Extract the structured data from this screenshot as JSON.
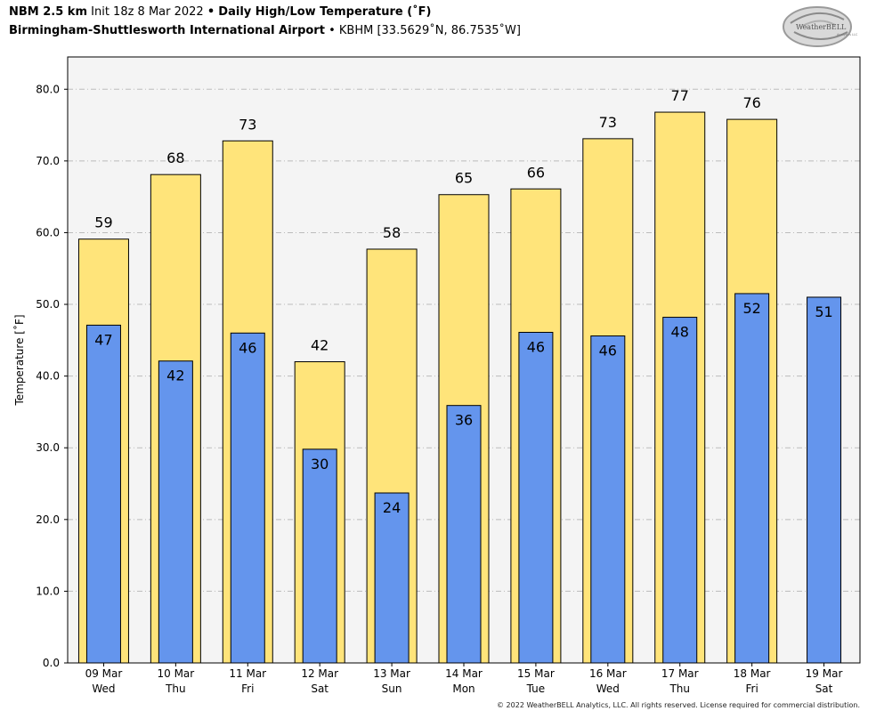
{
  "header": {
    "model": "NBM 2.5 km",
    "init": "Init 18z 8 Mar 2022",
    "bullet": "•",
    "product": "Daily High/Low Temperature (˚F)",
    "station_name": "Birmingham-Shuttlesworth International Airport",
    "station_info": "KBHM [33.5629˚N, 86.7535˚W]"
  },
  "logo": {
    "text": "WeatherBELL",
    "subtext": "Analytics LLC"
  },
  "copyright": "© 2022 WeatherBELL Analytics, LLC. All rights reserved. License required for commercial distribution.",
  "colors": {
    "high": "#FFE47A",
    "low": "#6495ED",
    "plot_bg": "#F4F4F4",
    "grid": "#BBBBBB"
  },
  "chart_data": {
    "type": "bar",
    "ylabel": "Temperature [˚F]",
    "ylim": [
      0,
      84.5
    ],
    "yticks": [
      "0.0",
      "10.0",
      "20.0",
      "30.0",
      "40.0",
      "50.0",
      "60.0",
      "70.0",
      "80.0"
    ],
    "grid": true,
    "categories": [
      {
        "date": "09 Mar",
        "day": "Wed"
      },
      {
        "date": "10 Mar",
        "day": "Thu"
      },
      {
        "date": "11 Mar",
        "day": "Fri"
      },
      {
        "date": "12 Mar",
        "day": "Sat"
      },
      {
        "date": "13 Mar",
        "day": "Sun"
      },
      {
        "date": "14 Mar",
        "day": "Mon"
      },
      {
        "date": "15 Mar",
        "day": "Tue"
      },
      {
        "date": "16 Mar",
        "day": "Wed"
      },
      {
        "date": "17 Mar",
        "day": "Thu"
      },
      {
        "date": "18 Mar",
        "day": "Fri"
      },
      {
        "date": "19 Mar",
        "day": "Sat"
      }
    ],
    "series": [
      {
        "values": [
          59.1,
          68.1,
          72.8,
          42.0,
          57.7,
          65.3,
          66.1,
          73.1,
          76.8,
          75.8,
          null
        ],
        "labels": [
          "59",
          "68",
          "73",
          "42",
          "58",
          "65",
          "66",
          "73",
          "77",
          "76",
          ""
        ]
      },
      {
        "values": [
          47.1,
          42.1,
          46.0,
          29.8,
          23.7,
          35.9,
          46.1,
          45.6,
          48.2,
          51.5,
          51.0
        ],
        "labels": [
          "47",
          "42",
          "46",
          "30",
          "24",
          "36",
          "46",
          "46",
          "48",
          "52",
          "51"
        ]
      }
    ]
  }
}
